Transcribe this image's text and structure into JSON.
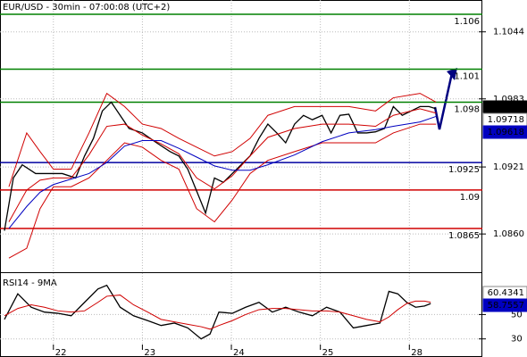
{
  "chart_data": {
    "type": "line",
    "title": "EUR/USD - 30min - 07:00:08 (UTC+2)",
    "xlim": [
      0.4,
      5.82
    ],
    "xticks": [
      {
        "value": 1,
        "label": "22"
      },
      {
        "value": 2,
        "label": "23"
      },
      {
        "value": 3,
        "label": "24"
      },
      {
        "value": 4,
        "label": "25"
      },
      {
        "value": 5,
        "label": "28"
      }
    ],
    "ylim": [
      1.0826,
      1.1073
    ],
    "yticks": [
      1.1044,
      1.0983,
      1.0921,
      {
        "value": 1.086,
        "label": "1.0860"
      }
    ],
    "grid": true,
    "levels": [
      {
        "value": 1.106,
        "color": "#008000"
      },
      {
        "value": 1.101,
        "color": "#008000"
      },
      {
        "value": 1.098,
        "color": "#008000"
      },
      {
        "value": 1.0925,
        "color": "#0000a0"
      },
      {
        "value": 1.09,
        "color": "#d00000"
      },
      {
        "value": 1.0865,
        "color": "#d00000"
      }
    ],
    "price_labels": [
      {
        "value": 1.09741,
        "color": "#000000",
        "text_color": "#ffffff"
      },
      {
        "value": 1.09718,
        "color": "#ffffff",
        "text_color": "#d00000"
      },
      {
        "value": 1.09618,
        "color": "#0000c0",
        "text_color": "#ffffff"
      }
    ],
    "series": [
      {
        "color": "#000000",
        "x": [
          0.45,
          0.55,
          0.65,
          0.8,
          0.95,
          1.1,
          1.25,
          1.35,
          1.45,
          1.55,
          1.65,
          1.75,
          1.85,
          2.0,
          2.16,
          2.31,
          2.41,
          2.51,
          2.61,
          2.71,
          2.81,
          2.91,
          3.01,
          3.11,
          3.21,
          3.31,
          3.41,
          3.51,
          3.61,
          3.71,
          3.81,
          3.91,
          4.02,
          4.12,
          4.22,
          4.32,
          4.42,
          4.52,
          4.62,
          4.72,
          4.82,
          4.92,
          5.02,
          5.12,
          5.22,
          5.3
        ],
        "values": [
          1.0863,
          1.0911,
          1.0923,
          1.0915,
          1.0915,
          1.0915,
          1.0911,
          1.0931,
          1.0947,
          1.0972,
          1.098,
          1.0968,
          1.0956,
          1.0952,
          1.0943,
          1.0935,
          1.0931,
          1.0919,
          1.0899,
          1.0879,
          1.0911,
          1.0907,
          1.0915,
          1.0923,
          1.0931,
          1.0947,
          1.096,
          1.0952,
          1.0943,
          1.096,
          1.0968,
          1.0964,
          1.0968,
          1.0952,
          1.0968,
          1.0969,
          1.0952,
          1.0952,
          1.0953,
          1.0956,
          1.0976,
          1.0968,
          1.0972,
          1.0976,
          1.0976,
          1.0974
        ]
      },
      {
        "color": "#d00000",
        "x": [
          0.5,
          0.7,
          0.85,
          1.0,
          1.2,
          1.4,
          1.6,
          1.8,
          2.0,
          2.21,
          2.41,
          2.61,
          2.81,
          3.01,
          3.21,
          3.41,
          3.71,
          4.02,
          4.32,
          4.62,
          4.82,
          5.12,
          5.3
        ],
        "values": [
          1.0903,
          1.0952,
          1.0935,
          1.0919,
          1.0919,
          1.0952,
          1.0988,
          1.0976,
          1.096,
          1.0956,
          1.0947,
          1.0939,
          1.0931,
          1.0935,
          1.0947,
          1.0968,
          1.0976,
          1.0976,
          1.0976,
          1.0972,
          1.0984,
          1.0988,
          1.098
        ]
      },
      {
        "color": "#d00000",
        "x": [
          0.5,
          0.7,
          0.85,
          1.0,
          1.2,
          1.4,
          1.6,
          1.8,
          2.0,
          2.21,
          2.41,
          2.61,
          2.81,
          3.01,
          3.21,
          3.41,
          3.71,
          4.02,
          4.32,
          4.62,
          4.82,
          5.12,
          5.3
        ],
        "values": [
          1.0838,
          1.0847,
          1.0883,
          1.0903,
          1.0903,
          1.0911,
          1.0927,
          1.0943,
          1.0939,
          1.0927,
          1.0919,
          1.0883,
          1.0871,
          1.0891,
          1.0915,
          1.0927,
          1.0935,
          1.0943,
          1.0943,
          1.0943,
          1.0952,
          1.096,
          1.096
        ]
      },
      {
        "color": "#d00000",
        "x": [
          0.5,
          0.7,
          0.85,
          1.0,
          1.2,
          1.4,
          1.6,
          1.8,
          2.0,
          2.21,
          2.41,
          2.61,
          2.81,
          3.01,
          3.21,
          3.41,
          3.71,
          4.02,
          4.32,
          4.62,
          4.82,
          5.12,
          5.3
        ],
        "values": [
          1.0871,
          1.09,
          1.0909,
          1.0911,
          1.0911,
          1.0932,
          1.0958,
          1.096,
          1.095,
          1.0942,
          1.0933,
          1.0911,
          1.0901,
          1.0913,
          1.0931,
          1.0948,
          1.0956,
          1.096,
          1.096,
          1.0958,
          1.0968,
          1.0974,
          1.097
        ]
      },
      {
        "color": "#0000c0",
        "x": [
          0.5,
          0.7,
          0.85,
          1.0,
          1.2,
          1.4,
          1.6,
          1.8,
          2.0,
          2.21,
          2.41,
          2.61,
          2.81,
          3.01,
          3.21,
          3.41,
          3.71,
          4.02,
          4.32,
          4.62,
          4.82,
          5.12,
          5.3
        ],
        "values": [
          1.0865,
          1.0885,
          1.0898,
          1.0905,
          1.091,
          1.0915,
          1.0925,
          1.094,
          1.0945,
          1.0945,
          1.0938,
          1.093,
          1.0922,
          1.0918,
          1.0918,
          1.0923,
          1.0932,
          1.0944,
          1.0952,
          1.0955,
          1.0958,
          1.0962,
          1.0967
        ]
      }
    ],
    "indicator": {
      "title": "RSI14 - 9MA",
      "ylim": [
        21,
        84
      ],
      "yticks": [
        50,
        30
      ],
      "value_labels": [
        {
          "value": 60.4341,
          "color": "#ffffff",
          "text_color": "#d00000"
        },
        {
          "value": 58.7557,
          "color": "#0000c0",
          "text_color": "#ffffff"
        }
      ],
      "series": [
        {
          "color": "#000000",
          "x": [
            0.45,
            0.6,
            0.75,
            0.9,
            1.05,
            1.2,
            1.35,
            1.5,
            1.6,
            1.75,
            1.9,
            2.06,
            2.21,
            2.36,
            2.51,
            2.66,
            2.76,
            2.86,
            3.01,
            3.16,
            3.31,
            3.46,
            3.61,
            3.76,
            3.91,
            4.07,
            4.22,
            4.37,
            4.52,
            4.67,
            4.77,
            4.87,
            4.97,
            5.07,
            5.17,
            5.24
          ],
          "values": [
            46,
            67,
            56,
            52,
            51,
            49,
            60,
            71,
            74,
            56,
            49,
            45,
            41,
            43,
            39,
            30,
            34,
            52,
            51,
            56,
            60,
            52,
            56,
            52,
            49,
            56,
            52,
            39,
            41,
            43,
            69,
            67,
            60,
            56,
            57,
            59
          ]
        },
        {
          "color": "#d00000",
          "x": [
            0.45,
            0.6,
            0.75,
            0.9,
            1.05,
            1.2,
            1.35,
            1.5,
            1.6,
            1.75,
            1.9,
            2.06,
            2.21,
            2.36,
            2.51,
            2.66,
            2.76,
            2.86,
            3.01,
            3.16,
            3.31,
            3.46,
            3.61,
            3.76,
            3.91,
            4.07,
            4.22,
            4.37,
            4.52,
            4.67,
            4.77,
            4.87,
            4.97,
            5.07,
            5.17,
            5.24
          ],
          "values": [
            49,
            55,
            58,
            56,
            53,
            52,
            53,
            60,
            65,
            66,
            58,
            52,
            46,
            44,
            42,
            40,
            38,
            41,
            45,
            50,
            54,
            55,
            55,
            54,
            53,
            53,
            52,
            49,
            46,
            44,
            48,
            54,
            59,
            61,
            61,
            60
          ]
        }
      ]
    }
  }
}
